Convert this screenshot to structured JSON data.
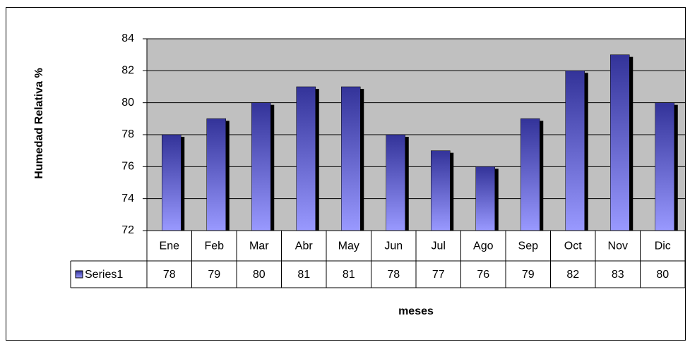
{
  "chart_data": {
    "type": "bar",
    "x_label": "meses",
    "y_label": "Humedad Relativa %",
    "categories": [
      "Ene",
      "Feb",
      "Mar",
      "Abr",
      "May",
      "Jun",
      "Jul",
      "Ago",
      "Sep",
      "Oct",
      "Nov",
      "Dic"
    ],
    "series": [
      {
        "name": "Series1",
        "color": "#333399",
        "values": [
          78,
          79,
          80,
          81,
          81,
          78,
          77,
          76,
          79,
          82,
          83,
          80
        ]
      }
    ],
    "ylim": [
      72,
      84
    ],
    "yticks": [
      72,
      74,
      76,
      78,
      80,
      82,
      84
    ],
    "grid": true
  }
}
